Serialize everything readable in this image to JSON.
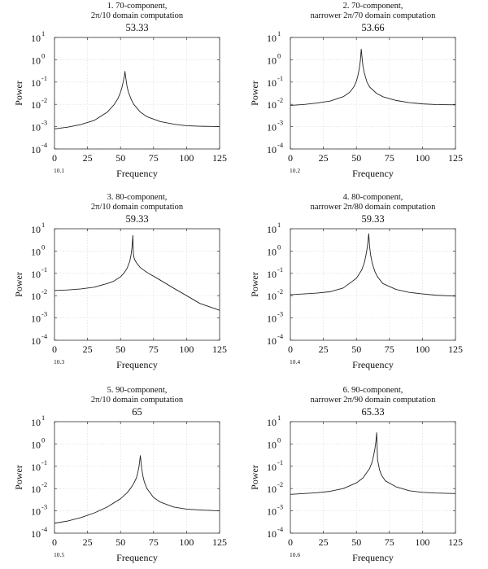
{
  "chart_data": [
    {
      "type": "line",
      "title_lines": [
        "1. 70-component,",
        "2π/10 domain computation"
      ],
      "peak_label": "53.33",
      "xlabel": "Frequency",
      "ylabel": "Power",
      "panel_id": "10.1",
      "xlim": [
        0,
        125
      ],
      "ylim_log10": [
        -4,
        1
      ],
      "y_scale": "log",
      "grid": true,
      "x_ticks": [
        "0",
        "25",
        "50",
        "75",
        "100",
        "125"
      ],
      "y_ticks": [
        {
          "base": "10",
          "exp": "-4"
        },
        {
          "base": "10",
          "exp": "-3"
        },
        {
          "base": "10",
          "exp": "-2"
        },
        {
          "base": "10",
          "exp": "-1"
        },
        {
          "base": "10",
          "exp": "0"
        },
        {
          "base": "10",
          "exp": "1"
        }
      ],
      "series": [
        {
          "x": [
            0,
            10,
            20,
            30,
            40,
            45,
            48,
            50,
            51,
            52,
            53,
            53.33,
            54,
            55,
            56,
            58,
            60,
            65,
            70,
            80,
            90,
            100,
            110,
            125
          ],
          "y": [
            0.0008,
            0.00095,
            0.00125,
            0.0019,
            0.0045,
            0.0095,
            0.018,
            0.035,
            0.055,
            0.1,
            0.2,
            0.3,
            0.15,
            0.06,
            0.035,
            0.017,
            0.01,
            0.0045,
            0.0028,
            0.0017,
            0.0013,
            0.0011,
            0.00105,
            0.001
          ]
        }
      ]
    },
    {
      "type": "line",
      "title_lines": [
        "2. 70-component,",
        "narrower 2π/70 domain computation"
      ],
      "peak_label": "53.66",
      "xlabel": "Frequency",
      "ylabel": "Power",
      "panel_id": "10.2",
      "xlim": [
        0,
        125
      ],
      "ylim_log10": [
        -4,
        1
      ],
      "y_scale": "log",
      "grid": true,
      "x_ticks": [
        "0",
        "25",
        "50",
        "75",
        "100",
        "125"
      ],
      "y_ticks": [
        {
          "base": "10",
          "exp": "-4"
        },
        {
          "base": "10",
          "exp": "-3"
        },
        {
          "base": "10",
          "exp": "-2"
        },
        {
          "base": "10",
          "exp": "-1"
        },
        {
          "base": "10",
          "exp": "0"
        },
        {
          "base": "10",
          "exp": "1"
        }
      ],
      "series": [
        {
          "x": [
            0,
            10,
            20,
            30,
            40,
            45,
            48,
            50,
            51,
            52,
            53,
            53.66,
            54.3,
            55,
            56,
            58,
            60,
            65,
            70,
            80,
            90,
            100,
            110,
            125
          ],
          "y": [
            0.009,
            0.0098,
            0.0115,
            0.014,
            0.022,
            0.035,
            0.06,
            0.11,
            0.18,
            0.35,
            0.9,
            3,
            1.2,
            0.5,
            0.25,
            0.1,
            0.06,
            0.032,
            0.022,
            0.015,
            0.012,
            0.0105,
            0.0098,
            0.0095
          ]
        }
      ]
    },
    {
      "type": "line",
      "title_lines": [
        "3. 80-component,",
        "2π/10 domain computation"
      ],
      "peak_label": "59.33",
      "xlabel": "Frequency",
      "ylabel": "Power",
      "panel_id": "10.3",
      "xlim": [
        0,
        125
      ],
      "ylim_log10": [
        -4,
        1
      ],
      "y_scale": "log",
      "grid": true,
      "x_ticks": [
        "0",
        "25",
        "50",
        "75",
        "100",
        "125"
      ],
      "y_ticks": [
        {
          "base": "10",
          "exp": "-4"
        },
        {
          "base": "10",
          "exp": "-3"
        },
        {
          "base": "10",
          "exp": "-2"
        },
        {
          "base": "10",
          "exp": "-1"
        },
        {
          "base": "10",
          "exp": "0"
        },
        {
          "base": "10",
          "exp": "1"
        }
      ],
      "series": [
        {
          "x": [
            0,
            10,
            20,
            30,
            40,
            45,
            50,
            53,
            55,
            57,
            58,
            58.7,
            59.33,
            59.7,
            60.2,
            61,
            62,
            65,
            70,
            80,
            90,
            100,
            110,
            125
          ],
          "y": [
            0.017,
            0.018,
            0.02,
            0.024,
            0.035,
            0.045,
            0.07,
            0.11,
            0.17,
            0.35,
            0.7,
            1.5,
            5,
            0.8,
            0.5,
            0.38,
            0.3,
            0.18,
            0.11,
            0.05,
            0.022,
            0.01,
            0.0045,
            0.0022
          ]
        }
      ]
    },
    {
      "type": "line",
      "title_lines": [
        "4. 80-component,",
        "narrower 2π/80 domain computation"
      ],
      "peak_label": "59.33",
      "xlabel": "Frequency",
      "ylabel": "Power",
      "panel_id": "10.4",
      "xlim": [
        0,
        125
      ],
      "ylim_log10": [
        -4,
        1
      ],
      "y_scale": "log",
      "grid": true,
      "x_ticks": [
        "0",
        "25",
        "50",
        "75",
        "100",
        "125"
      ],
      "y_ticks": [
        {
          "base": "10",
          "exp": "-4"
        },
        {
          "base": "10",
          "exp": "-3"
        },
        {
          "base": "10",
          "exp": "-2"
        },
        {
          "base": "10",
          "exp": "-1"
        },
        {
          "base": "10",
          "exp": "0"
        },
        {
          "base": "10",
          "exp": "1"
        }
      ],
      "series": [
        {
          "x": [
            0,
            10,
            20,
            30,
            40,
            50,
            54,
            56,
            57,
            58,
            58.7,
            59.33,
            60,
            60.7,
            62,
            64,
            66,
            70,
            80,
            90,
            100,
            110,
            125
          ],
          "y": [
            0.011,
            0.012,
            0.013,
            0.015,
            0.022,
            0.06,
            0.14,
            0.3,
            0.55,
            1.2,
            2.5,
            6,
            1.6,
            0.7,
            0.28,
            0.12,
            0.07,
            0.035,
            0.019,
            0.014,
            0.012,
            0.0105,
            0.0095
          ]
        }
      ]
    },
    {
      "type": "line",
      "title_lines": [
        "5. 90-component,",
        "2π/10 domain computation"
      ],
      "peak_label": "65",
      "xlabel": "Frequency",
      "ylabel": "Power",
      "panel_id": "10.5",
      "xlim": [
        0,
        125
      ],
      "ylim_log10": [
        -4,
        1
      ],
      "y_scale": "log",
      "grid": true,
      "x_ticks": [
        "0",
        "25",
        "50",
        "75",
        "100",
        "125"
      ],
      "y_ticks": [
        {
          "base": "10",
          "exp": "-4"
        },
        {
          "base": "10",
          "exp": "-3"
        },
        {
          "base": "10",
          "exp": "-2"
        },
        {
          "base": "10",
          "exp": "-1"
        },
        {
          "base": "10",
          "exp": "0"
        },
        {
          "base": "10",
          "exp": "1"
        }
      ],
      "series": [
        {
          "x": [
            0,
            10,
            20,
            30,
            40,
            50,
            55,
            58,
            60,
            62,
            63,
            64,
            65,
            66,
            67,
            68,
            70,
            75,
            80,
            90,
            100,
            110,
            125
          ],
          "y": [
            0.00028,
            0.00035,
            0.0005,
            0.0008,
            0.0015,
            0.0035,
            0.0065,
            0.011,
            0.017,
            0.03,
            0.05,
            0.1,
            0.3,
            0.08,
            0.035,
            0.02,
            0.01,
            0.004,
            0.0025,
            0.0015,
            0.0012,
            0.0011,
            0.001
          ]
        }
      ]
    },
    {
      "type": "line",
      "title_lines": [
        "6. 90-component,",
        "narrower 2π/90 domain computation"
      ],
      "peak_label": "65.33",
      "xlabel": "Frequency",
      "ylabel": "Power",
      "panel_id": "10.6",
      "xlim": [
        0,
        125
      ],
      "ylim_log10": [
        -4,
        1
      ],
      "y_scale": "log",
      "grid": true,
      "x_ticks": [
        "0",
        "25",
        "50",
        "75",
        "100",
        "125"
      ],
      "y_ticks": [
        {
          "base": "10",
          "exp": "-4"
        },
        {
          "base": "10",
          "exp": "-3"
        },
        {
          "base": "10",
          "exp": "-2"
        },
        {
          "base": "10",
          "exp": "-1"
        },
        {
          "base": "10",
          "exp": "0"
        },
        {
          "base": "10",
          "exp": "1"
        }
      ],
      "series": [
        {
          "x": [
            0,
            10,
            20,
            30,
            40,
            50,
            55,
            60,
            62,
            63,
            64,
            64.7,
            65.33,
            66,
            66.7,
            67.5,
            69,
            72,
            80,
            90,
            100,
            110,
            125
          ],
          "y": [
            0.0055,
            0.006,
            0.0065,
            0.0075,
            0.01,
            0.018,
            0.03,
            0.08,
            0.16,
            0.3,
            0.6,
            1.2,
            3.2,
            0.2,
            0.12,
            0.07,
            0.04,
            0.022,
            0.012,
            0.008,
            0.0068,
            0.0063,
            0.006
          ]
        }
      ]
    }
  ]
}
